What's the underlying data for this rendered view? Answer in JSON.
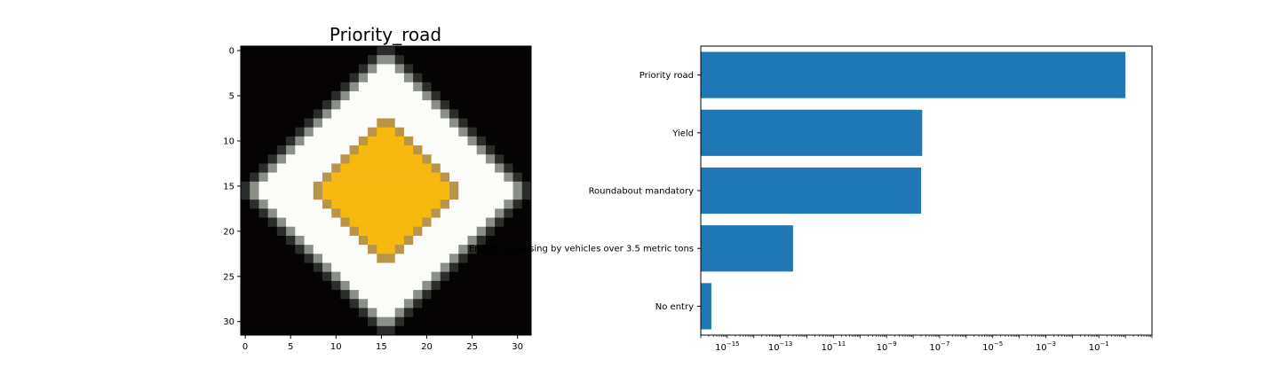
{
  "chart_data": [
    {
      "type": "image",
      "title": "Priority_road",
      "x_ticks": [
        "0",
        "5",
        "10",
        "15",
        "20",
        "25",
        "30"
      ],
      "y_ticks": [
        "0",
        "5",
        "10",
        "15",
        "20",
        "25",
        "30"
      ],
      "image_size": [
        32,
        32
      ],
      "colors": {
        "background": "#050304",
        "border_gray": "#8a9086",
        "white": "#fbfbfa",
        "yellow": "#f6b910",
        "yellow_edge": "#b9954a"
      }
    },
    {
      "type": "bar",
      "orientation": "horizontal",
      "x_scale": "log",
      "categories": [
        "Priority road",
        "Yield",
        "Roundabout mandatory",
        "End of no passing by vehicles over 3.5 metric tons",
        "No entry"
      ],
      "values": [
        0.9999999,
        2.2e-08,
        2e-08,
        3e-13,
        2.5e-16
      ],
      "xlim": [
        1e-16,
        10
      ],
      "x_ticks": [
        {
          "exp": -15,
          "label": "10",
          "sup": "−15"
        },
        {
          "exp": -13,
          "label": "10",
          "sup": "−13"
        },
        {
          "exp": -11,
          "label": "10",
          "sup": "−11"
        },
        {
          "exp": -9,
          "label": "10",
          "sup": "−9"
        },
        {
          "exp": -7,
          "label": "10",
          "sup": "−7"
        },
        {
          "exp": -5,
          "label": "10",
          "sup": "−5"
        },
        {
          "exp": -3,
          "label": "10",
          "sup": "−3"
        },
        {
          "exp": -1,
          "label": "10",
          "sup": "−1"
        }
      ],
      "bar_color": "#1f77b4"
    }
  ]
}
